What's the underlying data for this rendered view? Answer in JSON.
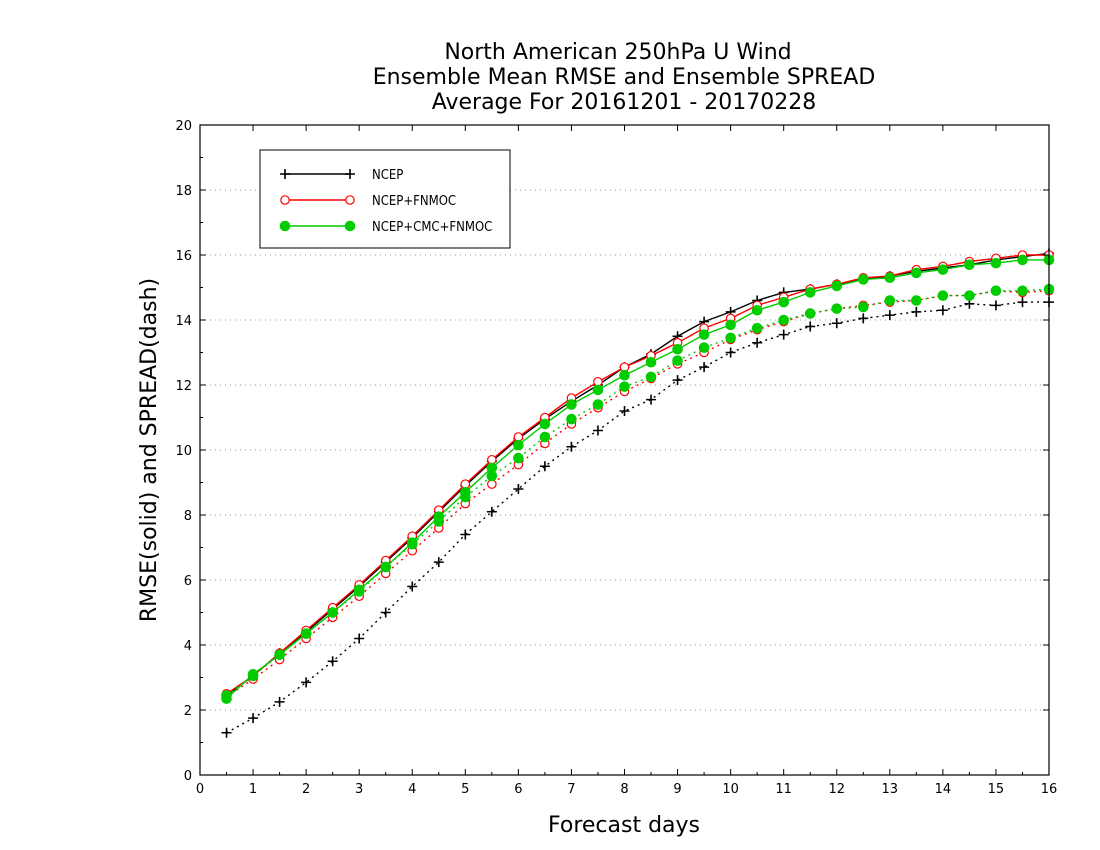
{
  "chart_data": {
    "type": "line",
    "title_lines": [
      "North American 250hPa U Wind",
      "Ensemble Mean RMSE and Ensemble SPREAD",
      "Average For 20161201 - 20170228"
    ],
    "xlabel": "Forecast days",
    "ylabel": "RMSE(solid) and SPREAD(dash)",
    "xlim": [
      0,
      16
    ],
    "ylim": [
      0,
      20
    ],
    "xticks": [
      "0",
      "1",
      "2",
      "3",
      "4",
      "5",
      "6",
      "7",
      "8",
      "9",
      "10",
      "11",
      "12",
      "13",
      "14",
      "15",
      "16"
    ],
    "yticks": [
      "0",
      "2",
      "4",
      "6",
      "8",
      "10",
      "12",
      "14",
      "16",
      "18",
      "20"
    ],
    "grid": "horizontal dotted",
    "legend_position": "top-left",
    "x": [
      0.5,
      1,
      1.5,
      2,
      2.5,
      3,
      3.5,
      4,
      4.5,
      5,
      5.5,
      6,
      6.5,
      7,
      7.5,
      8,
      8.5,
      9,
      9.5,
      10,
      10.5,
      11,
      11.5,
      12,
      12.5,
      13,
      13.5,
      14,
      14.5,
      15,
      15.5,
      16
    ],
    "series": [
      {
        "name": "NCEP",
        "color": "#000000",
        "marker": "plus",
        "rmse": [
          2.45,
          3.05,
          3.75,
          4.4,
          5.1,
          5.8,
          6.55,
          7.3,
          8.1,
          8.9,
          9.65,
          10.35,
          10.95,
          11.5,
          12.0,
          12.55,
          12.95,
          13.5,
          13.95,
          14.25,
          14.6,
          14.85,
          14.95,
          15.1,
          15.25,
          15.35,
          15.5,
          15.6,
          15.7,
          15.85,
          15.95,
          16.05
        ],
        "spread": [
          1.3,
          1.75,
          2.25,
          2.85,
          3.5,
          4.2,
          5.0,
          5.8,
          6.55,
          7.4,
          8.1,
          8.8,
          9.5,
          10.1,
          10.6,
          11.2,
          11.55,
          12.15,
          12.55,
          13.0,
          13.3,
          13.55,
          13.8,
          13.9,
          14.05,
          14.15,
          14.25,
          14.3,
          14.5,
          14.45,
          14.55,
          14.55
        ]
      },
      {
        "name": "NCEP+FNMOC",
        "color": "#ff0000",
        "marker": "open-circle",
        "rmse": [
          2.5,
          3.05,
          3.75,
          4.45,
          5.15,
          5.85,
          6.6,
          7.35,
          8.15,
          8.95,
          9.7,
          10.4,
          11.0,
          11.6,
          12.1,
          12.55,
          12.9,
          13.3,
          13.75,
          14.05,
          14.45,
          14.7,
          14.95,
          15.1,
          15.3,
          15.35,
          15.55,
          15.65,
          15.8,
          15.9,
          16.0,
          16.0
        ],
        "spread": [
          2.4,
          2.95,
          3.55,
          4.2,
          4.85,
          5.5,
          6.2,
          6.9,
          7.6,
          8.35,
          8.95,
          9.55,
          10.2,
          10.8,
          11.3,
          11.8,
          12.2,
          12.65,
          13.0,
          13.4,
          13.7,
          13.95,
          14.2,
          14.35,
          14.45,
          14.55,
          14.6,
          14.75,
          14.75,
          14.9,
          14.85,
          14.9
        ]
      },
      {
        "name": "NCEP+CMC+FNMOC",
        "color": "#00cc00",
        "marker": "filled-circle",
        "rmse": [
          2.35,
          3.1,
          3.7,
          4.35,
          5.0,
          5.7,
          6.4,
          7.15,
          7.95,
          8.7,
          9.45,
          10.15,
          10.8,
          11.4,
          11.85,
          12.3,
          12.7,
          13.1,
          13.55,
          13.85,
          14.3,
          14.55,
          14.85,
          15.05,
          15.25,
          15.3,
          15.45,
          15.55,
          15.7,
          15.75,
          15.85,
          15.85
        ],
        "spread": [
          2.45,
          3.05,
          3.7,
          4.35,
          5.0,
          5.65,
          6.4,
          7.1,
          7.8,
          8.55,
          9.2,
          9.75,
          10.4,
          10.95,
          11.4,
          11.95,
          12.25,
          12.75,
          13.15,
          13.45,
          13.75,
          14.0,
          14.2,
          14.35,
          14.4,
          14.6,
          14.6,
          14.75,
          14.75,
          14.9,
          14.9,
          14.95
        ]
      }
    ]
  }
}
